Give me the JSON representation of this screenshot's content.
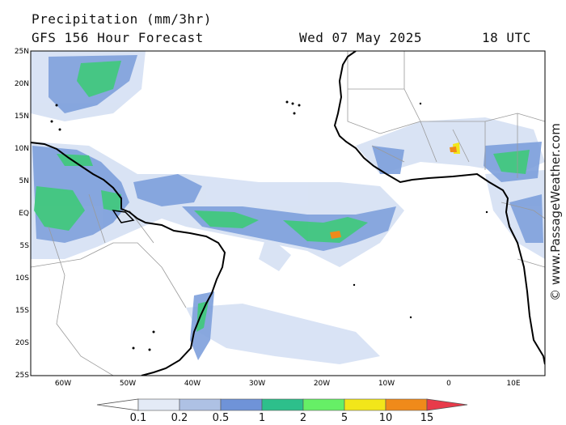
{
  "header": {
    "title": "Precipitation (mm/3hr)",
    "subtitle": "GFS 156 Hour Forecast",
    "date": "Wed 07 May 2025",
    "time": "18 UTC"
  },
  "map": {
    "lat_labels": [
      "25N",
      "20N",
      "15N",
      "10N",
      "5N",
      "EQ",
      "5S",
      "10S",
      "15S",
      "20S",
      "25S"
    ],
    "lon_labels": [
      "60W",
      "50W",
      "40W",
      "30W",
      "20W",
      "10W",
      "0",
      "10E"
    ],
    "land_color": "#ffffff",
    "coast_color": "#000000",
    "border_color": "#9a9a9a"
  },
  "credit": "© www.PassageWeather.com",
  "legend": {
    "labels": [
      "0.1",
      "0.2",
      "0.5",
      "1",
      "2",
      "5",
      "10",
      "15"
    ],
    "colors": [
      "#ffffff",
      "#e3eaf6",
      "#aec1e4",
      "#6f93d8",
      "#2dbf8b",
      "#66ef66",
      "#f2e61a",
      "#f08a1a",
      "#e83a4a"
    ]
  }
}
